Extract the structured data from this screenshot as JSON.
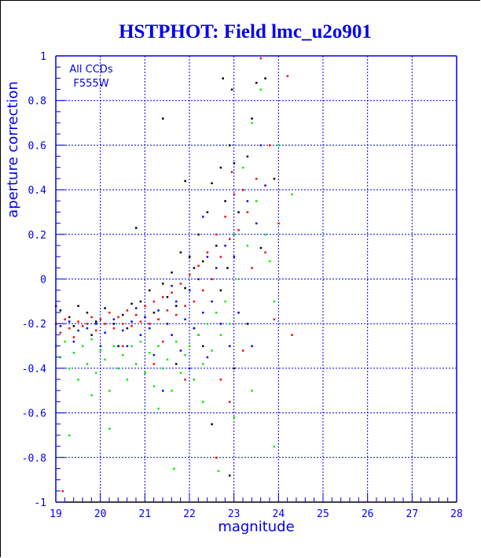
{
  "chart_data": {
    "type": "scatter",
    "title": "HSTPHOT: Field lmc_u2o901",
    "xlabel": "magnitude",
    "ylabel": "aperture correction",
    "xlim": [
      19,
      28
    ],
    "ylim": [
      -1,
      1
    ],
    "grid": true,
    "annotations": [
      "All CCDs",
      "F555W"
    ],
    "xticks": [
      "19",
      "20",
      "21",
      "22",
      "23",
      "24",
      "25",
      "26",
      "27",
      "28"
    ],
    "yticks": [
      "1",
      "0.8",
      "0.6",
      "0.4",
      "0.2",
      "0",
      "-0.2",
      "-0.4",
      "-0.6",
      "-0.8",
      "-1"
    ],
    "series": [
      {
        "name": "black",
        "color": "#000000",
        "points": [
          [
            19.1,
            -0.14
          ],
          [
            19.3,
            -0.17
          ],
          [
            19.5,
            -0.12
          ],
          [
            19.7,
            -0.15
          ],
          [
            19.9,
            -0.19
          ],
          [
            20.1,
            -0.13
          ],
          [
            20.3,
            -0.2
          ],
          [
            20.5,
            -0.16
          ],
          [
            20.7,
            -0.11
          ],
          [
            20.9,
            -0.1
          ],
          [
            21.1,
            -0.05
          ],
          [
            21.2,
            -0.15
          ],
          [
            21.4,
            -0.02
          ],
          [
            21.5,
            -0.08
          ],
          [
            21.6,
            0.03
          ],
          [
            21.7,
            -0.12
          ],
          [
            21.8,
            0.12
          ],
          [
            21.9,
            -0.04
          ],
          [
            22.0,
            0.1
          ],
          [
            22.1,
            0.05
          ],
          [
            22.2,
            0.2
          ],
          [
            22.3,
            0.08
          ],
          [
            22.4,
            0.3
          ],
          [
            22.5,
            0.43
          ],
          [
            22.6,
            0.15
          ],
          [
            22.7,
            0.5
          ],
          [
            22.75,
            0.9
          ],
          [
            22.8,
            0.35
          ],
          [
            22.9,
            0.6
          ],
          [
            22.95,
            0.85
          ],
          [
            23.0,
            0.52
          ],
          [
            23.1,
            0.3
          ],
          [
            23.3,
            0.55
          ],
          [
            23.4,
            0.72
          ],
          [
            23.5,
            0.88
          ],
          [
            23.7,
            0.9
          ],
          [
            23.9,
            0.45
          ],
          [
            21.4,
            0.72
          ],
          [
            21.9,
            0.44
          ],
          [
            20.8,
            0.23
          ],
          [
            22.5,
            -0.65
          ],
          [
            22.9,
            -0.88
          ],
          [
            23.0,
            -0.4
          ],
          [
            22.3,
            -0.3
          ],
          [
            21.7,
            -0.38
          ],
          [
            20.4,
            -0.3
          ],
          [
            19.8,
            -0.25
          ],
          [
            22.1,
            -0.22
          ],
          [
            23.6,
            0.14
          ],
          [
            23.3,
            -0.2
          ],
          [
            22.7,
            -0.05
          ],
          [
            21.3,
            -0.18
          ],
          [
            20.6,
            -0.22
          ],
          [
            19.4,
            -0.21
          ],
          [
            22.85,
            0.05
          ]
        ]
      },
      {
        "name": "red",
        "color": "#ff0000",
        "points": [
          [
            19.0,
            -0.2
          ],
          [
            19.1,
            -0.24
          ],
          [
            19.2,
            -0.18
          ],
          [
            19.3,
            -0.22
          ],
          [
            19.4,
            -0.26
          ],
          [
            19.5,
            -0.19
          ],
          [
            19.6,
            -0.21
          ],
          [
            19.7,
            -0.2
          ],
          [
            19.8,
            -0.17
          ],
          [
            19.9,
            -0.23
          ],
          [
            20.0,
            -0.18
          ],
          [
            20.1,
            -0.2
          ],
          [
            20.2,
            -0.15
          ],
          [
            20.3,
            -0.22
          ],
          [
            20.4,
            -0.17
          ],
          [
            20.5,
            -0.2
          ],
          [
            20.6,
            -0.14
          ],
          [
            20.7,
            -0.21
          ],
          [
            20.8,
            -0.16
          ],
          [
            20.9,
            -0.19
          ],
          [
            21.0,
            -0.12
          ],
          [
            21.1,
            -0.2
          ],
          [
            21.2,
            -0.1
          ],
          [
            21.3,
            -0.18
          ],
          [
            21.4,
            -0.08
          ],
          [
            21.5,
            -0.14
          ],
          [
            21.6,
            -0.06
          ],
          [
            21.7,
            -0.16
          ],
          [
            21.8,
            -0.02
          ],
          [
            21.9,
            -0.12
          ],
          [
            22.0,
            0.02
          ],
          [
            22.1,
            -0.1
          ],
          [
            22.2,
            0.06
          ],
          [
            22.3,
            -0.05
          ],
          [
            22.4,
            0.12
          ],
          [
            22.5,
            0.0
          ],
          [
            22.6,
            0.2
          ],
          [
            22.7,
            0.1
          ],
          [
            22.8,
            0.28
          ],
          [
            22.9,
            0.18
          ],
          [
            23.0,
            0.38
          ],
          [
            23.1,
            0.22
          ],
          [
            23.2,
            0.4
          ],
          [
            23.3,
            0.3
          ],
          [
            23.4,
            0.05
          ],
          [
            23.5,
            0.45
          ],
          [
            23.6,
            0.99
          ],
          [
            23.8,
            0.6
          ],
          [
            24.0,
            0.25
          ],
          [
            24.2,
            0.91
          ],
          [
            23.9,
            -0.18
          ],
          [
            24.3,
            -0.25
          ],
          [
            23.2,
            -0.32
          ],
          [
            22.7,
            -0.45
          ],
          [
            22.6,
            -0.8
          ],
          [
            21.9,
            -0.45
          ],
          [
            19.15,
            -0.95
          ],
          [
            20.5,
            -0.3
          ],
          [
            21.4,
            -0.28
          ],
          [
            22.2,
            -0.25
          ],
          [
            22.9,
            -0.55
          ],
          [
            23.7,
            0.12
          ],
          [
            22.95,
            0.48
          ],
          [
            21.2,
            -0.38
          ]
        ]
      },
      {
        "name": "blue",
        "color": "#0000ff",
        "points": [
          [
            19.0,
            -0.12
          ],
          [
            19.1,
            -0.21
          ],
          [
            19.3,
            -0.19
          ],
          [
            19.5,
            -0.23
          ],
          [
            19.7,
            -0.22
          ],
          [
            19.9,
            -0.2
          ],
          [
            20.1,
            -0.24
          ],
          [
            20.3,
            -0.18
          ],
          [
            20.5,
            -0.23
          ],
          [
            20.7,
            -0.19
          ],
          [
            20.9,
            -0.25
          ],
          [
            21.0,
            -0.17
          ],
          [
            21.1,
            -0.22
          ],
          [
            21.3,
            -0.14
          ],
          [
            21.5,
            -0.2
          ],
          [
            21.6,
            -0.25
          ],
          [
            21.7,
            -0.1
          ],
          [
            21.9,
            -0.18
          ],
          [
            22.0,
            -0.05
          ],
          [
            22.1,
            -0.22
          ],
          [
            22.2,
            0.0
          ],
          [
            22.3,
            -0.15
          ],
          [
            22.4,
            0.1
          ],
          [
            22.5,
            -0.1
          ],
          [
            22.6,
            0.05
          ],
          [
            22.7,
            -0.2
          ],
          [
            22.8,
            0.15
          ],
          [
            22.9,
            -0.3
          ],
          [
            23.0,
            0.1
          ],
          [
            23.3,
            0.35
          ],
          [
            23.5,
            0.25
          ],
          [
            23.7,
            0.42
          ],
          [
            23.4,
            -0.3
          ],
          [
            22.4,
            -0.35
          ],
          [
            21.8,
            -0.32
          ],
          [
            21.2,
            -0.34
          ],
          [
            20.6,
            -0.3
          ],
          [
            20.0,
            -0.3
          ],
          [
            19.4,
            -0.28
          ],
          [
            22.0,
            -0.4
          ],
          [
            21.4,
            -0.5
          ],
          [
            23.6,
            0.6
          ],
          [
            22.3,
            0.28
          ],
          [
            21.6,
            -0.03
          ],
          [
            20.8,
            -0.13
          ],
          [
            19.6,
            -0.3
          ],
          [
            23.1,
            -0.15
          ]
        ]
      },
      {
        "name": "green",
        "color": "#00ee00",
        "points": [
          [
            19.0,
            -0.3
          ],
          [
            19.1,
            -0.35
          ],
          [
            19.2,
            -0.28
          ],
          [
            19.3,
            -0.4
          ],
          [
            19.4,
            -0.33
          ],
          [
            19.5,
            -0.45
          ],
          [
            19.6,
            -0.3
          ],
          [
            19.7,
            -0.38
          ],
          [
            19.8,
            -0.27
          ],
          [
            19.9,
            -0.42
          ],
          [
            20.0,
            -0.32
          ],
          [
            20.1,
            -0.36
          ],
          [
            20.2,
            -0.5
          ],
          [
            20.3,
            -0.3
          ],
          [
            20.4,
            -0.4
          ],
          [
            20.5,
            -0.34
          ],
          [
            20.6,
            -0.45
          ],
          [
            20.7,
            -0.3
          ],
          [
            20.8,
            -0.38
          ],
          [
            20.9,
            -0.28
          ],
          [
            21.0,
            -0.42
          ],
          [
            21.1,
            -0.33
          ],
          [
            21.2,
            -0.48
          ],
          [
            21.3,
            -0.3
          ],
          [
            21.4,
            -0.4
          ],
          [
            21.5,
            -0.36
          ],
          [
            21.6,
            -0.5
          ],
          [
            21.7,
            -0.28
          ],
          [
            21.8,
            -0.42
          ],
          [
            21.9,
            -0.34
          ],
          [
            22.0,
            -0.3
          ],
          [
            22.1,
            -0.45
          ],
          [
            22.2,
            -0.25
          ],
          [
            22.3,
            -0.38
          ],
          [
            22.4,
            -0.2
          ],
          [
            22.5,
            -0.32
          ],
          [
            22.6,
            -0.15
          ],
          [
            22.7,
            -0.25
          ],
          [
            22.8,
            -0.1
          ],
          [
            22.9,
            -0.2
          ],
          [
            23.0,
            0.2
          ],
          [
            23.1,
            0.0
          ],
          [
            23.2,
            0.5
          ],
          [
            23.3,
            0.15
          ],
          [
            23.4,
            0.7
          ],
          [
            23.5,
            0.35
          ],
          [
            23.6,
            0.85
          ],
          [
            23.7,
            0.2
          ],
          [
            23.8,
            0.08
          ],
          [
            23.9,
            -0.1
          ],
          [
            24.0,
            0.6
          ],
          [
            24.3,
            0.38
          ],
          [
            23.4,
            -0.5
          ],
          [
            23.9,
            -0.75
          ],
          [
            21.65,
            -0.85
          ],
          [
            22.65,
            -0.86
          ],
          [
            19.3,
            -0.7
          ],
          [
            20.2,
            -0.67
          ],
          [
            19.8,
            -0.52
          ],
          [
            23.0,
            -0.62
          ],
          [
            22.3,
            -0.55
          ],
          [
            21.3,
            -0.58
          ]
        ]
      }
    ]
  }
}
